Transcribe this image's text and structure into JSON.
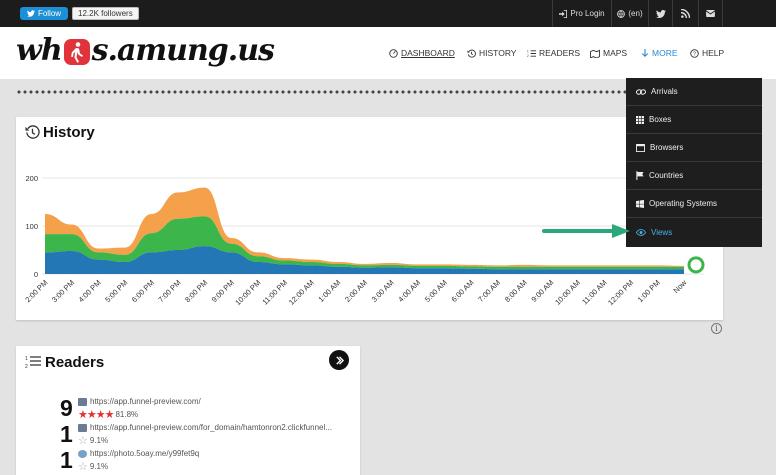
{
  "topbar": {
    "follow_label": "Follow",
    "followers": "12.2K followers",
    "login": "Pro Login",
    "language": "(en)",
    "icons": [
      "twitter-icon",
      "rss-icon",
      "mail-icon"
    ]
  },
  "brand": {
    "logo_left": "wh",
    "logo_right": "s.amung.us"
  },
  "nav": [
    {
      "label": "DASHBOARD",
      "icon": "dashboard-icon",
      "active": true
    },
    {
      "label": "HISTORY",
      "icon": "history-icon"
    },
    {
      "label": "READERS",
      "icon": "readers-icon"
    },
    {
      "label": "MAPS",
      "icon": "maps-icon"
    },
    {
      "label": "MORE",
      "icon": "arrow-down-icon",
      "highlight": true
    },
    {
      "label": "HELP",
      "icon": "help-icon"
    }
  ],
  "dropdown": [
    {
      "label": "Arrivals",
      "icon": "link-icon"
    },
    {
      "label": "Boxes",
      "icon": "grid-icon"
    },
    {
      "label": "Browsers",
      "icon": "window-icon"
    },
    {
      "label": "Countries",
      "icon": "flag-icon"
    },
    {
      "label": "Operating Systems",
      "icon": "windows-icon"
    },
    {
      "label": "Views",
      "icon": "eye-icon",
      "highlight": true
    }
  ],
  "history": {
    "title": "History",
    "chart_data": {
      "type": "area",
      "title": "History",
      "xlabel": "",
      "ylabel": "",
      "ylim": [
        0,
        200
      ],
      "yticks": [
        0,
        100,
        200
      ],
      "grid": true,
      "x": [
        "2:00 PM",
        "3:00 PM",
        "4:00 PM",
        "5:00 PM",
        "6:00 PM",
        "7:00 PM",
        "8:00 PM",
        "9:00 PM",
        "10:00 PM",
        "11:00 PM",
        "12:00 AM",
        "1:00 AM",
        "2:00 AM",
        "3:00 AM",
        "4:00 AM",
        "5:00 AM",
        "6:00 AM",
        "7:00 AM",
        "8:00 AM",
        "9:00 AM",
        "10:00 AM",
        "11:00 AM",
        "12:00 PM",
        "1:00 PM",
        "Now"
      ],
      "series": [
        {
          "color": "#2277b4",
          "values": [
            45,
            48,
            30,
            25,
            45,
            50,
            58,
            45,
            25,
            20,
            18,
            15,
            13,
            14,
            12,
            12,
            11,
            10,
            10,
            10,
            10,
            10,
            10,
            10,
            10
          ]
        },
        {
          "color": "#3cb54a",
          "values": [
            38,
            35,
            15,
            15,
            40,
            65,
            62,
            18,
            12,
            8,
            7,
            6,
            5,
            5,
            5,
            5,
            5,
            5,
            5,
            5,
            5,
            5,
            5,
            5,
            5
          ]
        },
        {
          "color": "#f5a04a",
          "values": [
            42,
            20,
            8,
            15,
            40,
            55,
            60,
            12,
            8,
            5,
            5,
            4,
            3,
            4,
            3,
            3,
            3,
            3,
            4,
            3,
            3,
            3,
            3,
            3,
            2
          ]
        }
      ]
    }
  },
  "readers": {
    "title": "Readers",
    "items": [
      {
        "count": "9",
        "url": "https://app.funnel-preview.com/",
        "stars": 4,
        "pct": "81.8%"
      },
      {
        "count": "1",
        "url": "https://app.funnel-preview.com/for_domain/hamtonron2.clickfunnel...",
        "stars": 0,
        "pct": "9.1%"
      },
      {
        "count": "1",
        "url": "https://photo.5oay.me/y99fet9q",
        "stars": 0,
        "pct": "9.1%"
      }
    ]
  },
  "colors": {
    "accent": "#2a8ad4",
    "arrow": "#2aa87a"
  }
}
